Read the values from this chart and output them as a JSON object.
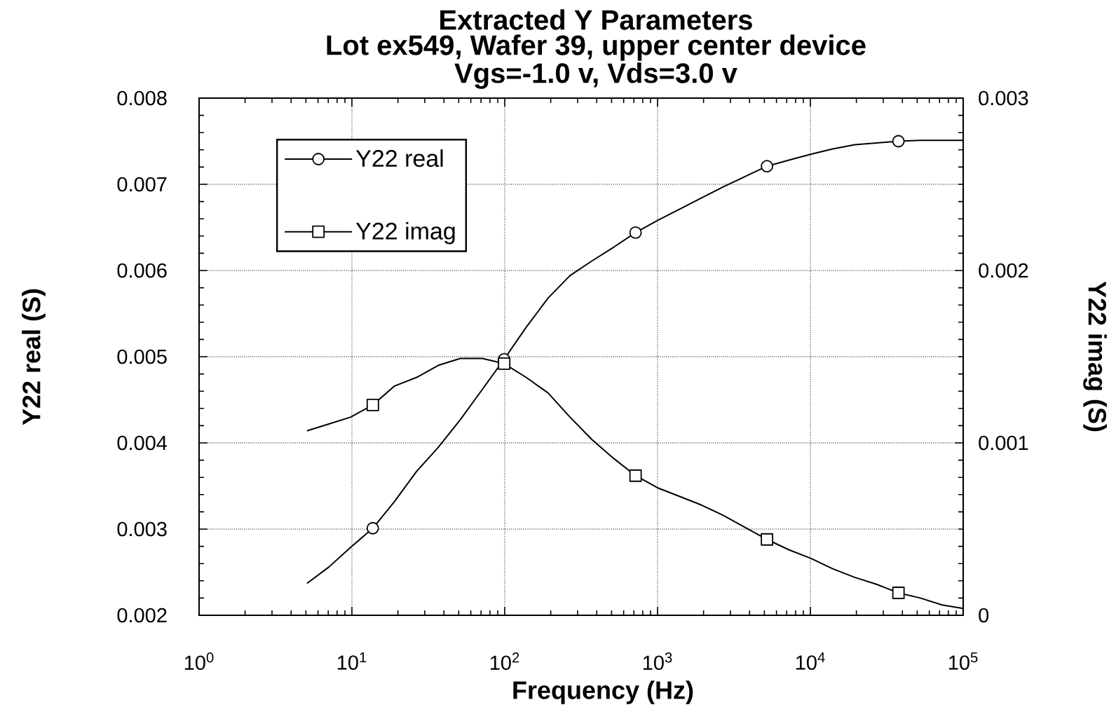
{
  "chart_data": {
    "type": "line",
    "title": "Extracted Y Parameters",
    "subtitle": "Lot ex549, Wafer 39, upper center device",
    "annotations": [
      "Vgs=-1.0 v, Vds=3.0 v"
    ],
    "xlabel": "Frequency (Hz)",
    "ylabel": "Y22 real (S)",
    "y2label": "Y22 imag (S)",
    "log": "x",
    "xlim": [
      1,
      100000
    ],
    "xticks": [
      {
        "value": 1,
        "label": "10$^{0}$"
      },
      {
        "value": 10,
        "label": "10$^{1}$"
      },
      {
        "value": 100,
        "label": "10$^{2}$"
      },
      {
        "value": 1000,
        "label": "10$^{3}$"
      },
      {
        "value": 10000,
        "label": "10$^{4}$"
      },
      {
        "value": 100000,
        "label": "10$^{5}$"
      }
    ],
    "ylim": [
      0.002,
      0.008
    ],
    "yticks": [
      0.002,
      0.003,
      0.004,
      0.005,
      0.006,
      0.007,
      0.008
    ],
    "y2lim": [
      0,
      0.003
    ],
    "y2ticks": [
      0,
      0.001,
      0.002,
      0.003
    ],
    "grid": true,
    "legend": "top left",
    "x": [
      5.08,
      7.07,
      9.84,
      13.7,
      19.0,
      26.5,
      36.8,
      51.2,
      71.3,
      99.1,
      138,
      192,
      267,
      371,
      516,
      718,
      998,
      1390,
      1930,
      2690,
      3740,
      5200,
      7230,
      10100,
      14000,
      19500,
      27100,
      37700,
      52400,
      72800,
      100000
    ],
    "series": [
      {
        "name": "Y22 real",
        "color": "#000000",
        "values": [
          0.00237,
          0.00256,
          0.00279,
          0.00301,
          0.00332,
          0.00367,
          0.00395,
          0.00427,
          0.00462,
          0.00497,
          0.00534,
          0.00568,
          0.00594,
          0.00611,
          0.00627,
          0.00644,
          0.00658,
          0.00671,
          0.00684,
          0.00697,
          0.00709,
          0.00721,
          0.00728,
          0.00735,
          0.00741,
          0.00746,
          0.00748,
          0.0075,
          0.00751,
          0.00751,
          0.00751
        ]
      },
      {
        "name": "Y22 imag",
        "color": "#000000",
        "axis": "y2",
        "values": [
          0.00107,
          0.00111,
          0.00115,
          0.00122,
          0.00133,
          0.00138,
          0.00145,
          0.00149,
          0.00149,
          0.00146,
          0.00138,
          0.00129,
          0.00115,
          0.00102,
          0.00091,
          0.00081,
          0.00074,
          0.00069,
          0.00064,
          0.00058,
          0.00051,
          0.00044,
          0.00038,
          0.00033,
          0.00027,
          0.00022,
          0.00018,
          0.00013,
          0.0001,
          6e-05,
          4e-05
        ]
      },
      {
        "type": "scatter",
        "color": "#000000",
        "marker": "circle",
        "x": [
          13.7,
          99.1,
          718,
          5200,
          37700
        ],
        "values": [
          0.00301,
          0.00497,
          0.00644,
          0.00721,
          0.0075
        ]
      },
      {
        "type": "scatter",
        "color": "#000000",
        "marker": "square",
        "axis": "y2",
        "x": [
          13.7,
          99.1,
          718,
          5200,
          37700
        ],
        "values": [
          0.00122,
          0.00146,
          0.00081,
          0.00044,
          0.00013
        ]
      }
    ]
  }
}
